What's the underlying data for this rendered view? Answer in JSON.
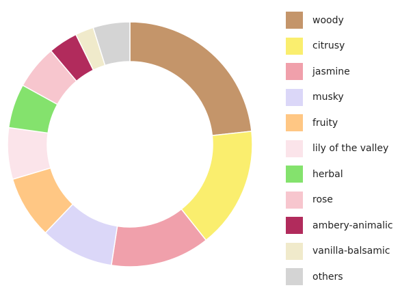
{
  "chart_data": {
    "type": "pie",
    "donut": true,
    "start_angle_deg": 90,
    "direction": "clockwise",
    "legend_position": "right",
    "slices": [
      {
        "label": "woody",
        "value": 24.0,
        "color": "#c4956a"
      },
      {
        "label": "citrusy",
        "value": 16.5,
        "color": "#faee6e"
      },
      {
        "label": "jasmine",
        "value": 13.5,
        "color": "#f0a0ab"
      },
      {
        "label": "musky",
        "value": 10.0,
        "color": "#dbd7f8"
      },
      {
        "label": "fruity",
        "value": 8.5,
        "color": "#ffc784"
      },
      {
        "label": "lily of the valley",
        "value": 7.0,
        "color": "#fbe4ea"
      },
      {
        "label": "herbal",
        "value": 6.0,
        "color": "#84e26d"
      },
      {
        "label": "rose",
        "value": 6.0,
        "color": "#f7c6ce"
      },
      {
        "label": "ambery-animalic",
        "value": 4.0,
        "color": "#b12b5c"
      },
      {
        "label": "vanilla-balsamic",
        "value": 2.5,
        "color": "#f0eacb"
      },
      {
        "label": "others",
        "value": 5.0,
        "color": "#d4d4d4"
      }
    ]
  }
}
